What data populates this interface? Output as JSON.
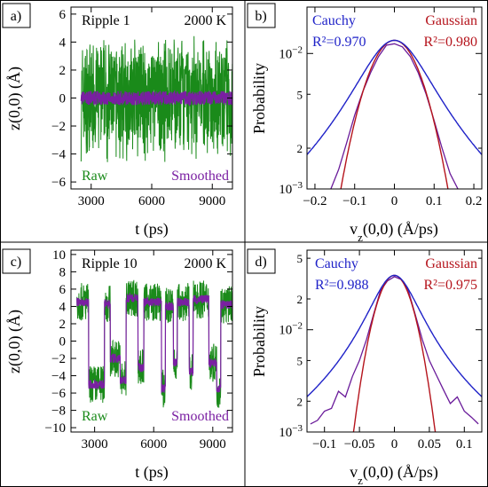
{
  "chart_data": [
    {
      "panel_label": "a)",
      "type": "line",
      "title_left": "Ripple 1",
      "title_right": "2000 K",
      "xlabel": "t (ps)",
      "ylabel": "z(0,0) (Å)",
      "xlim": [
        2000,
        10000
      ],
      "ylim": [
        -6.5,
        6.5
      ],
      "xticks": [
        3000,
        6000,
        9000
      ],
      "yticks": [
        -6,
        -4,
        -2,
        0,
        2,
        4,
        6
      ],
      "legend_left": "Raw",
      "legend_right": "Smoothed",
      "series": [
        {
          "name": "Raw",
          "color": "#1a8a1a",
          "envelope": [
            [
              2000,
              -4.8,
              4.6
            ],
            [
              10000,
              -4.8,
              4.6
            ]
          ],
          "mean": 0.0
        },
        {
          "name": "Smoothed",
          "color": "#7a1fa2",
          "envelope": [
            [
              2000,
              -0.5,
              0.5
            ],
            [
              10000,
              -0.5,
              0.5
            ]
          ],
          "mean": 0.0
        }
      ]
    },
    {
      "panel_label": "b)",
      "type": "line",
      "xlabel": "v_z(0,0) (Å/ps)",
      "ylabel": "Probability",
      "xlim": [
        -0.22,
        0.22
      ],
      "ylim": [
        0.001,
        0.022
      ],
      "yscale": "log",
      "xticks": [
        -0.2,
        -0.1,
        0.0,
        0.1,
        0.2
      ],
      "ytick_labels": [
        "10^-3",
        "2",
        "5",
        "10^-2"
      ],
      "fit_left": {
        "name": "Cauchy",
        "r2": "R²=0.970",
        "color": "#1f22c8"
      },
      "fit_right": {
        "name": "Gaussian",
        "r2": "R²=0.980",
        "color": "#b5141c"
      },
      "series": [
        {
          "name": "Cauchy",
          "fn": "cauchy",
          "x0": 0.0,
          "peak": 0.0125,
          "gamma": 0.09
        },
        {
          "name": "Gaussian",
          "fn": "gauss",
          "x0": 0.0,
          "peak": 0.0125,
          "sigma": 0.06
        },
        {
          "name": "Data",
          "color": "#6a1b9a",
          "x": [
            -0.16,
            -0.14,
            -0.12,
            -0.1,
            -0.08,
            -0.06,
            -0.04,
            -0.02,
            0.0,
            0.02,
            0.04,
            0.06,
            0.08,
            0.1,
            0.12,
            0.14,
            0.16
          ],
          "y": [
            0.001,
            0.0014,
            0.0022,
            0.0035,
            0.0052,
            0.0072,
            0.0095,
            0.0115,
            0.0118,
            0.0112,
            0.0095,
            0.0072,
            0.005,
            0.0032,
            0.002,
            0.0013,
            0.001
          ]
        }
      ]
    },
    {
      "panel_label": "c)",
      "type": "line",
      "title_left": "Ripple 10",
      "title_right": "2000 K",
      "xlabel": "t (ps)",
      "ylabel": "z(0,0) (Å)",
      "xlim": [
        1800,
        10000
      ],
      "ylim": [
        -10.5,
        10.5
      ],
      "xticks": [
        3000,
        6000,
        9000
      ],
      "yticks": [
        -10,
        -8,
        -6,
        -4,
        -2,
        0,
        2,
        4,
        6,
        8,
        10
      ],
      "legend_left": "Raw",
      "legend_right": "Smoothed",
      "series": [
        {
          "name": "Smoothed",
          "color": "#7a1fa2",
          "steps": [
            [
              2000,
              4.5
            ],
            [
              2700,
              -5.0
            ],
            [
              3500,
              4.3
            ],
            [
              3800,
              -2.0
            ],
            [
              4300,
              -4.5
            ],
            [
              4600,
              5.0
            ],
            [
              5200,
              -3.0
            ],
            [
              5500,
              4.5
            ],
            [
              6400,
              -5.5
            ],
            [
              6600,
              4.0
            ],
            [
              7000,
              -2.5
            ],
            [
              7200,
              4.5
            ],
            [
              7800,
              -3.5
            ],
            [
              8000,
              4.8
            ],
            [
              8800,
              -2.5
            ],
            [
              9200,
              -5.5
            ],
            [
              9400,
              4.2
            ],
            [
              10000,
              4.2
            ]
          ]
        },
        {
          "name": "Raw",
          "color": "#1a8a1a",
          "noise": 2.2
        }
      ]
    },
    {
      "panel_label": "d)",
      "type": "line",
      "xlabel": "v_z(0,0) (Å/ps)",
      "ylabel": "Probability",
      "xlim": [
        -0.125,
        0.125
      ],
      "ylim": [
        0.001,
        0.06
      ],
      "yscale": "log",
      "xticks": [
        -0.1,
        -0.05,
        0.0,
        0.05,
        0.1
      ],
      "ytick_labels": [
        "10^-3",
        "2",
        "5",
        "10^-2",
        "2",
        "5"
      ],
      "fit_left": {
        "name": "Cauchy",
        "r2": "R²=0.988",
        "color": "#1f22c8"
      },
      "fit_right": {
        "name": "Gaussian",
        "r2": "R²=0.975",
        "color": "#b5141c"
      },
      "series": [
        {
          "name": "Cauchy",
          "fn": "cauchy",
          "x0": 0.0,
          "peak": 0.034,
          "gamma": 0.033
        },
        {
          "name": "Gaussian",
          "fn": "gauss",
          "x0": 0.0,
          "peak": 0.034,
          "sigma": 0.022
        },
        {
          "name": "Data",
          "color": "#6a1b9a",
          "x": [
            -0.12,
            -0.11,
            -0.1,
            -0.09,
            -0.08,
            -0.07,
            -0.06,
            -0.05,
            -0.04,
            -0.03,
            -0.02,
            -0.01,
            0.0,
            0.01,
            0.02,
            0.03,
            0.04,
            0.05,
            0.06,
            0.07,
            0.08,
            0.09,
            0.1,
            0.11,
            0.12
          ],
          "y": [
            0.0012,
            0.0013,
            0.0016,
            0.0017,
            0.0025,
            0.0022,
            0.0035,
            0.005,
            0.008,
            0.014,
            0.024,
            0.03,
            0.033,
            0.031,
            0.024,
            0.014,
            0.008,
            0.005,
            0.0036,
            0.0026,
            0.0019,
            0.0022,
            0.0016,
            0.0014,
            0.0012
          ]
        }
      ]
    }
  ]
}
